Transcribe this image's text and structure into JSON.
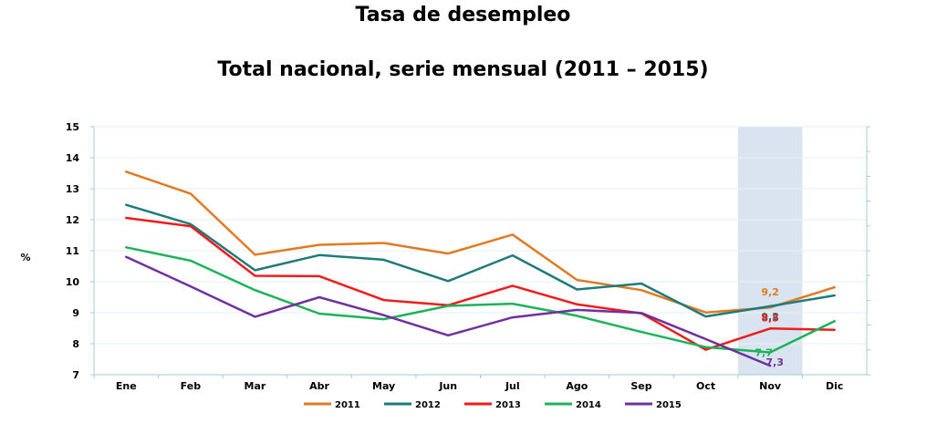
{
  "title": "Tasa de desempleo",
  "subtitle": "Total nacional, serie mensual (2011 – 2015)",
  "chart_data": {
    "type": "line",
    "ylabel": "%",
    "ylim": [
      7,
      15
    ],
    "yticks": [
      "7",
      "8",
      "9",
      "10",
      "11",
      "12",
      "13",
      "14",
      "15"
    ],
    "categories": [
      "Ene",
      "Feb",
      "Mar",
      "Abr",
      "May",
      "Jun",
      "Jul",
      "Ago",
      "Sep",
      "Oct",
      "Nov",
      "Dic"
    ],
    "highlight_category": "Nov",
    "legend_position": "bottom",
    "series": [
      {
        "name": "2011",
        "color": "#E07B24",
        "values": [
          13.55,
          12.84,
          10.87,
          11.19,
          11.25,
          10.91,
          11.52,
          10.06,
          9.73,
          9.01,
          9.17,
          9.82
        ]
      },
      {
        "name": "2012",
        "color": "#1E7B7A",
        "values": [
          12.48,
          11.86,
          10.37,
          10.86,
          10.71,
          10.02,
          10.85,
          9.75,
          9.94,
          8.88,
          9.21,
          9.56
        ]
      },
      {
        "name": "2013",
        "color": "#EE1C1C",
        "values": [
          12.06,
          11.79,
          10.19,
          10.18,
          9.41,
          9.24,
          9.87,
          9.27,
          8.98,
          7.81,
          8.49,
          8.45
        ]
      },
      {
        "name": "2014",
        "color": "#1EB25A",
        "values": [
          11.11,
          10.68,
          9.73,
          8.97,
          8.79,
          9.22,
          9.29,
          8.9,
          8.38,
          7.89,
          7.72,
          8.73
        ]
      },
      {
        "name": "2015",
        "color": "#7030A0",
        "values": [
          10.8,
          9.85,
          8.87,
          9.5,
          8.92,
          8.27,
          8.85,
          9.09,
          8.99,
          8.15,
          7.29,
          null
        ]
      }
    ],
    "annotations": [
      {
        "series": "2011",
        "category": "Nov",
        "text": "9,2"
      },
      {
        "series": "2012",
        "category": "Nov",
        "text": "9,2"
      },
      {
        "series": "2013",
        "category": "Nov",
        "text": "8,5"
      },
      {
        "series": "2014",
        "category": "Nov",
        "text": "7,7"
      },
      {
        "series": "2015",
        "category": "Nov",
        "text": "7,3"
      }
    ]
  }
}
